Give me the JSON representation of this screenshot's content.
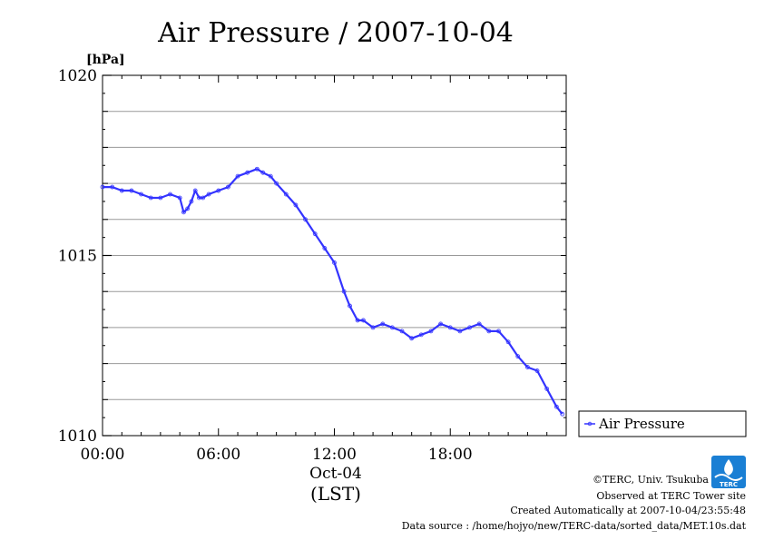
{
  "colors": {
    "series": "#3333ff",
    "grid": "#999999",
    "axis": "#000000",
    "logo": "#1a7fd4"
  },
  "chart_data": {
    "type": "line",
    "title": "Air Pressure / 2007-10-04",
    "ylabel": "[hPa]",
    "xlabel": "(LST)",
    "date_label": "Oct-04",
    "ylim": [
      1010,
      1020
    ],
    "xlim": [
      0,
      24
    ],
    "grid": true,
    "y_ticks": [
      {
        "value": 1010,
        "label": "1010"
      },
      {
        "value": 1015,
        "label": "1015"
      },
      {
        "value": 1020,
        "label": "1020"
      }
    ],
    "y_minor": [
      1011,
      1012,
      1013,
      1014,
      1016,
      1017,
      1018,
      1019
    ],
    "x_ticks": [
      {
        "value": 0,
        "label": "00:00"
      },
      {
        "value": 6,
        "label": "06:00"
      },
      {
        "value": 12,
        "label": "12:00"
      },
      {
        "value": 18,
        "label": "18:00"
      }
    ],
    "legend": {
      "position": "right",
      "entries": [
        "Air Pressure"
      ]
    },
    "series": [
      {
        "name": "Air Pressure",
        "x": [
          0,
          0.5,
          1.0,
          1.5,
          2.0,
          2.5,
          3.0,
          3.5,
          4.0,
          4.2,
          4.4,
          4.6,
          4.8,
          5.0,
          5.2,
          5.5,
          6.0,
          6.5,
          7.0,
          7.5,
          8.0,
          8.3,
          8.7,
          9.0,
          9.5,
          10.0,
          10.5,
          11.0,
          11.5,
          12.0,
          12.5,
          12.8,
          13.2,
          13.5,
          14.0,
          14.5,
          15.0,
          15.5,
          16.0,
          16.5,
          17.0,
          17.5,
          18.0,
          18.5,
          19.0,
          19.5,
          20.0,
          20.5,
          21.0,
          21.5,
          22.0,
          22.5,
          23.0,
          23.5,
          23.8
        ],
        "y": [
          1016.9,
          1016.9,
          1016.8,
          1016.8,
          1016.7,
          1016.6,
          1016.6,
          1016.7,
          1016.6,
          1016.2,
          1016.3,
          1016.5,
          1016.8,
          1016.6,
          1016.6,
          1016.7,
          1016.8,
          1016.9,
          1017.2,
          1017.3,
          1017.4,
          1017.3,
          1017.2,
          1017.0,
          1016.7,
          1016.4,
          1016.0,
          1015.6,
          1015.2,
          1014.8,
          1014.0,
          1013.6,
          1013.2,
          1013.2,
          1013.0,
          1013.1,
          1013.0,
          1012.9,
          1012.7,
          1012.8,
          1012.9,
          1013.1,
          1013.0,
          1012.9,
          1013.0,
          1013.1,
          1012.9,
          1012.9,
          1012.6,
          1012.2,
          1011.9,
          1011.8,
          1011.3,
          1010.8,
          1010.6
        ]
      }
    ]
  },
  "credits": {
    "copyright": "©TERC, Univ. Tsukuba",
    "observed": "Observed at TERC Tower site",
    "created": "Created Automatically at 2007-10-04/23:55:48",
    "source": "Data source : /home/hojyo/new/TERC-data/sorted_data/MET.10s.dat",
    "logo_text": "TERC"
  }
}
